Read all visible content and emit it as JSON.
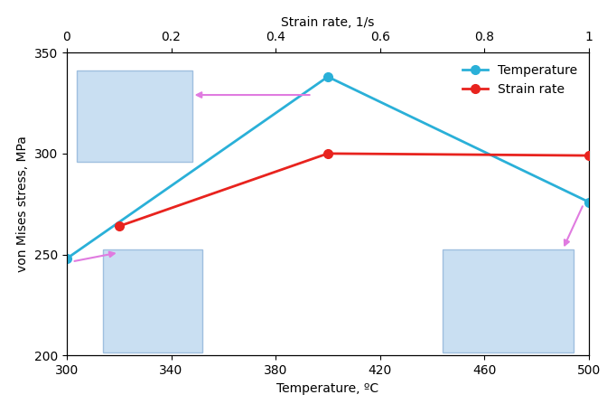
{
  "chart_data": {
    "type": "line",
    "xlabel": "Temperature, ºC",
    "x2label": "Strain rate, 1/s",
    "ylabel": "von Mises stress, MPa",
    "xlim": [
      300,
      500
    ],
    "xticks": [
      300,
      340,
      380,
      420,
      460,
      500
    ],
    "x2lim": [
      0,
      1
    ],
    "x2ticks": [
      0,
      0.2,
      0.4,
      0.6,
      0.8,
      1
    ],
    "ylim": [
      200,
      350
    ],
    "yticks": [
      200,
      250,
      300,
      350
    ],
    "legend": "upper right",
    "series": [
      {
        "name": "Temperature",
        "color": "#2ab0d8",
        "marker": "o",
        "line_style": "solid",
        "x": [
          300,
          400,
          500
        ],
        "values": [
          248,
          338,
          276
        ]
      },
      {
        "name": "Strain rate",
        "color": "#e8231e",
        "marker": "o",
        "line_style": "solid",
        "axis": "x2",
        "x": [
          0.1,
          0.5,
          1
        ],
        "values": [
          264,
          300,
          299
        ]
      }
    ]
  }
}
